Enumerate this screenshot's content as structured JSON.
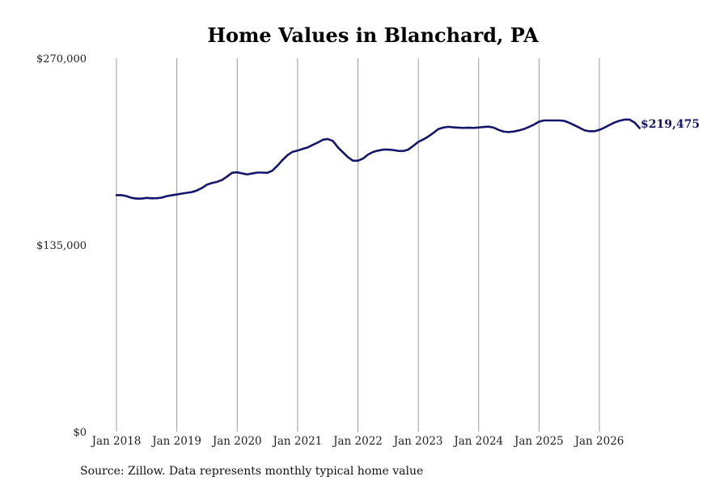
{
  "chart_data": {
    "type": "line",
    "title": "Home Values in Blanchard, PA",
    "xlabel": "",
    "ylabel": "",
    "ylim": [
      0,
      270000
    ],
    "yticks": [
      {
        "value": 0,
        "label": "$0"
      },
      {
        "value": 135000,
        "label": "$135,000"
      },
      {
        "value": 270000,
        "label": "$270,000"
      }
    ],
    "xticks": [
      {
        "year": 2018,
        "label": "Jan 2018"
      },
      {
        "year": 2019,
        "label": "Jan 2019"
      },
      {
        "year": 2020,
        "label": "Jan 2020"
      },
      {
        "year": 2021,
        "label": "Jan 2021"
      },
      {
        "year": 2022,
        "label": "Jan 2022"
      },
      {
        "year": 2023,
        "label": "Jan 2023"
      },
      {
        "year": 2024,
        "label": "Jan 2024"
      },
      {
        "year": 2025,
        "label": "Jan 2025"
      },
      {
        "year": 2026,
        "label": "Jan 2026"
      }
    ],
    "grid": "vertical",
    "legend": "none",
    "line_color": "#14146b",
    "end_label": "$219,475",
    "series": [
      {
        "x": [
          "2018-01",
          "2018-02",
          "2018-03",
          "2018-04",
          "2018-05",
          "2018-06",
          "2018-07",
          "2018-08",
          "2018-09",
          "2018-10",
          "2018-11",
          "2018-12",
          "2019-01",
          "2019-02",
          "2019-03",
          "2019-04",
          "2019-05",
          "2019-06",
          "2019-07",
          "2019-08",
          "2019-09",
          "2019-10",
          "2019-11",
          "2019-12",
          "2020-01",
          "2020-02",
          "2020-03",
          "2020-04",
          "2020-05",
          "2020-06",
          "2020-07",
          "2020-08",
          "2020-09",
          "2020-10",
          "2020-11",
          "2020-12",
          "2021-01",
          "2021-02",
          "2021-03",
          "2021-04",
          "2021-05",
          "2021-06",
          "2021-07",
          "2021-08",
          "2021-09",
          "2021-10",
          "2021-11",
          "2021-12",
          "2022-01",
          "2022-02",
          "2022-03",
          "2022-04",
          "2022-05",
          "2022-06",
          "2022-07",
          "2022-08",
          "2022-09",
          "2022-10",
          "2022-11",
          "2022-12",
          "2023-01",
          "2023-02",
          "2023-03",
          "2023-04",
          "2023-05",
          "2023-06",
          "2023-07",
          "2023-08",
          "2023-09",
          "2023-10",
          "2023-11",
          "2023-12",
          "2024-01",
          "2024-02",
          "2024-03",
          "2024-04",
          "2024-05",
          "2024-06",
          "2024-07",
          "2024-08",
          "2024-09",
          "2024-10",
          "2024-11",
          "2024-12",
          "2025-01",
          "2025-02",
          "2025-03",
          "2025-04",
          "2025-05",
          "2025-06",
          "2025-07",
          "2025-08",
          "2025-09",
          "2025-10",
          "2025-11",
          "2025-12",
          "2026-01",
          "2026-02",
          "2026-03",
          "2026-04",
          "2026-05",
          "2026-06",
          "2026-07",
          "2026-08",
          "2026-09"
        ],
        "values": [
          171000,
          171000,
          170300,
          169000,
          168500,
          168500,
          169000,
          168700,
          168800,
          169200,
          170300,
          170900,
          171500,
          172100,
          172700,
          173200,
          174400,
          176200,
          178600,
          179800,
          180600,
          182000,
          184500,
          187200,
          187500,
          186700,
          186000,
          186700,
          187300,
          187300,
          187100,
          188700,
          192300,
          196400,
          199900,
          202300,
          203200,
          204400,
          205500,
          207300,
          209000,
          211000,
          211600,
          210200,
          205600,
          202000,
          198500,
          195900,
          195900,
          197400,
          200300,
          202200,
          203200,
          203900,
          203900,
          203600,
          203000,
          202900,
          203900,
          206600,
          209500,
          211300,
          213400,
          216000,
          218800,
          219900,
          220400,
          220000,
          219800,
          219600,
          219800,
          219600,
          219900,
          220300,
          220500,
          219800,
          218100,
          216900,
          216600,
          217000,
          217800,
          218800,
          220300,
          222000,
          224100,
          225000,
          225000,
          225000,
          225000,
          224700,
          223300,
          221600,
          219800,
          217900,
          217200,
          217200,
          218200,
          219800,
          221700,
          223500,
          224800,
          225600,
          225600,
          223500,
          219475
        ]
      }
    ]
  },
  "source_text": "Source: Zillow. Data represents monthly typical home value"
}
